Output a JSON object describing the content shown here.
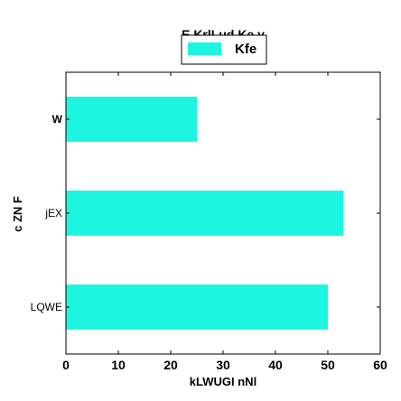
{
  "chart_data": {
    "type": "bar",
    "orientation": "horizontal",
    "title": "E KrlLud  Ke y",
    "xlabel": "kLWUGI nNl",
    "ylabel": "c ZN F",
    "categories": [
      "LQWE",
      "jEX",
      "W"
    ],
    "category_label_bold": [
      false,
      false,
      true
    ],
    "series": [
      {
        "name": "Kfe",
        "values": [
          50,
          53,
          25
        ],
        "color": "#1ef5e1"
      }
    ],
    "xlim": [
      0,
      60
    ],
    "xticks": [
      0,
      10,
      20,
      30,
      40,
      50,
      60
    ],
    "grid": false,
    "legend_position": "top-center"
  }
}
